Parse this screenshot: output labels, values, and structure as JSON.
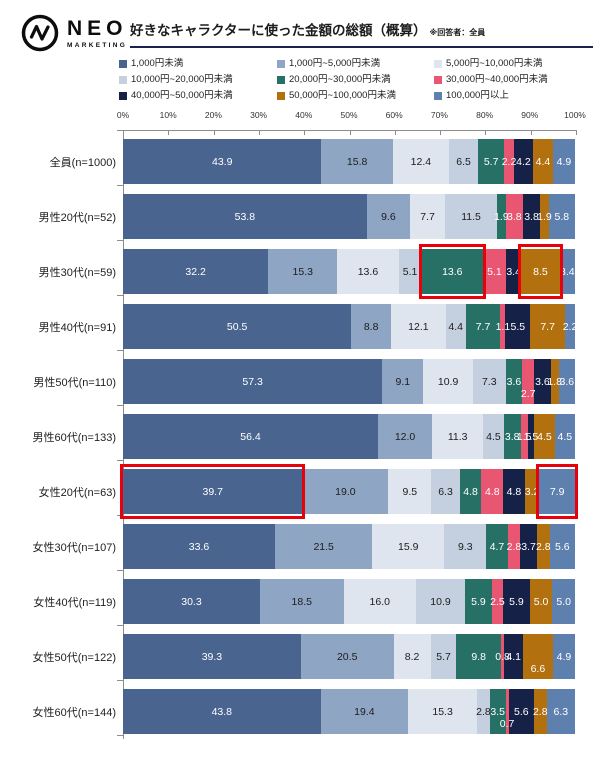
{
  "header": {
    "logo": {
      "name": "NEO",
      "sub": "MARKETING"
    },
    "title": "好きなキャラクターに使った金額の総額（概算）",
    "note": "※回答者：全員"
  },
  "chart_data": {
    "type": "bar",
    "stacked": true,
    "orientation": "horizontal",
    "unit": "%",
    "title": "好きなキャラクターに使った金額の総額（概算）",
    "axis": {
      "range": [
        0,
        100
      ],
      "ticks": [
        "0%",
        "10%",
        "20%",
        "30%",
        "40%",
        "50%",
        "60%",
        "70%",
        "80%",
        "90%",
        "100%"
      ]
    },
    "legend_position": "top",
    "legend": [
      {
        "label": "1,000円未満",
        "color": "#49648f"
      },
      {
        "label": "1,000円~5,000円未満",
        "color": "#8fa5c4"
      },
      {
        "label": "5,000円~10,000円未満",
        "color": "#dee5ef"
      },
      {
        "label": "10,000円~20,000円未満",
        "color": "#c4cfdf"
      },
      {
        "label": "20,000円~30,000円未満",
        "color": "#267066"
      },
      {
        "label": "30,000円~40,000円未満",
        "color": "#e85672"
      },
      {
        "label": "40,000円~50,000円未満",
        "color": "#162148"
      },
      {
        "label": "50,000円~100,000円未満",
        "color": "#b2700f"
      },
      {
        "label": "100,000円以上",
        "color": "#5e80ae"
      }
    ],
    "highlight_color": "#e8000a",
    "rows": [
      {
        "category": "全員(n=1000)",
        "values": [
          43.9,
          15.8,
          12.4,
          6.5,
          5.7,
          2.2,
          4.2,
          4.4,
          4.9
        ],
        "labels": [
          "43.9",
          "15.8",
          "12.4",
          "6.5",
          "5.7",
          "2.2",
          "4.2",
          "4.4",
          "4.9"
        ],
        "highlights": [],
        "drop": []
      },
      {
        "category": "男性20代(n=52)",
        "values": [
          53.8,
          9.6,
          7.7,
          11.5,
          1.9,
          3.8,
          3.8,
          1.9,
          5.8
        ],
        "labels": [
          "53.8",
          "9.6",
          "7.7",
          "11.5",
          "1.9",
          "3.8",
          "3.8",
          "1.9",
          "5.8"
        ],
        "highlights": [],
        "drop": []
      },
      {
        "category": "男性30代(n=59)",
        "values": [
          32.2,
          15.3,
          13.6,
          5.1,
          13.6,
          5.1,
          3.4,
          8.5,
          3.4
        ],
        "labels": [
          "32.2",
          "15.3",
          "13.6",
          "5.1",
          "13.6",
          "5.1",
          "3.4",
          "8.5",
          "3.4"
        ],
        "highlights": [
          4,
          7
        ],
        "drop": []
      },
      {
        "category": "男性40代(n=91)",
        "values": [
          50.5,
          8.8,
          12.1,
          4.4,
          7.7,
          1.1,
          5.5,
          7.7,
          2.2
        ],
        "labels": [
          "50.5",
          "8.8",
          "12.1",
          "4.4",
          "7.7",
          "1.1",
          "5.5",
          "7.7",
          "2.2"
        ],
        "highlights": [],
        "drop": []
      },
      {
        "category": "男性50代(n=110)",
        "values": [
          57.3,
          9.1,
          10.9,
          7.3,
          3.6,
          2.7,
          3.6,
          1.8,
          3.6
        ],
        "labels": [
          "57.3",
          "9.1",
          "10.9",
          "7.3",
          "3.6",
          "2.7",
          "3.6",
          "1.8",
          "3.6"
        ],
        "highlights": [],
        "drop": [
          5
        ]
      },
      {
        "category": "男性60代(n=133)",
        "values": [
          56.4,
          12.0,
          11.3,
          4.5,
          3.8,
          1.5,
          1.5,
          4.5,
          4.5
        ],
        "labels": [
          "56.4",
          "12.0",
          "11.3",
          "4.5",
          "3.8",
          "1.5",
          "1.5",
          "4.5",
          "4.5"
        ],
        "highlights": [],
        "drop": []
      },
      {
        "category": "女性20代(n=63)",
        "values": [
          39.7,
          19.0,
          9.5,
          6.3,
          4.8,
          4.8,
          4.8,
          3.2,
          7.9
        ],
        "labels": [
          "39.7",
          "19.0",
          "9.5",
          "6.3",
          "4.8",
          "4.8",
          "4.8",
          "3.2",
          "7.9"
        ],
        "highlights": [
          0,
          8
        ],
        "drop": []
      },
      {
        "category": "女性30代(n=107)",
        "values": [
          33.6,
          21.5,
          15.9,
          9.3,
          4.7,
          2.8,
          3.7,
          2.8,
          5.6
        ],
        "labels": [
          "33.6",
          "21.5",
          "15.9",
          "9.3",
          "4.7",
          "2.8",
          "3.7",
          "2.8",
          "5.6"
        ],
        "highlights": [],
        "drop": []
      },
      {
        "category": "女性40代(n=119)",
        "values": [
          30.3,
          18.5,
          16.0,
          10.9,
          5.9,
          2.5,
          5.9,
          5.0,
          5.0
        ],
        "labels": [
          "30.3",
          "18.5",
          "16.0",
          "10.9",
          "5.9",
          "2.5",
          "5.9",
          "5.0",
          "5.0"
        ],
        "highlights": [],
        "drop": []
      },
      {
        "category": "女性50代(n=122)",
        "values": [
          39.3,
          20.5,
          8.2,
          5.7,
          9.8,
          0.8,
          4.1,
          6.6,
          4.9
        ],
        "labels": [
          "39.3",
          "20.5",
          "8.2",
          "5.7",
          "9.8",
          "0.8",
          "4.1",
          "6.6",
          "4.9"
        ],
        "highlights": [],
        "drop": [
          7
        ]
      },
      {
        "category": "女性60代(n=144)",
        "values": [
          43.8,
          19.4,
          15.3,
          2.8,
          3.5,
          0.7,
          5.6,
          2.8,
          6.3
        ],
        "labels": [
          "43.8",
          "19.4",
          "15.3",
          "2.8",
          "3.5",
          "0.7",
          "5.6",
          "2.8",
          "6.3"
        ],
        "highlights": [],
        "drop": [
          5
        ]
      }
    ],
    "dark_text_segments": [
      1,
      2,
      3
    ],
    "label_colors": {
      "light": "#ffffff",
      "dark": "#1d1d1d"
    }
  }
}
